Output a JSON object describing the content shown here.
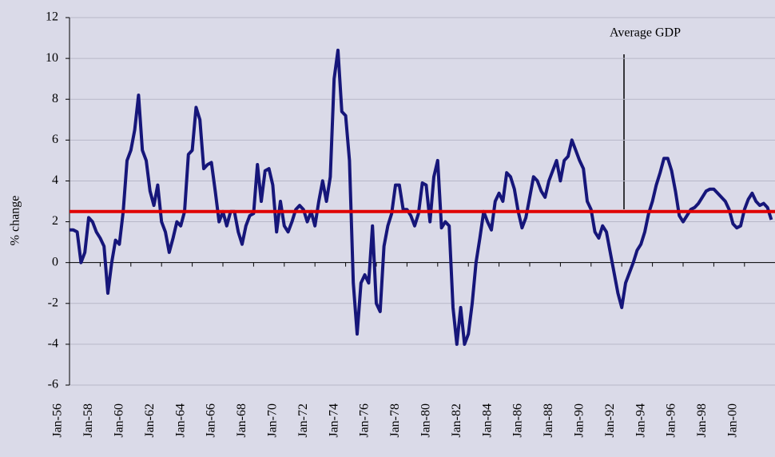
{
  "chart_data": {
    "type": "line",
    "y_label": "% change",
    "annotation": "Average GDP",
    "average": 2.5,
    "average_color": "#e00000",
    "color": "#16167a",
    "categories": [
      "Jan-56",
      null,
      null,
      null,
      null,
      null,
      null,
      null,
      "Jan-58",
      null,
      null,
      null,
      null,
      null,
      null,
      null,
      "Jan-60",
      null,
      null,
      null,
      null,
      null,
      null,
      null,
      "Jan-62",
      null,
      null,
      null,
      null,
      null,
      null,
      null,
      "Jan-64",
      null,
      null,
      null,
      null,
      null,
      null,
      null,
      "Jan-66",
      null,
      null,
      null,
      null,
      null,
      null,
      null,
      "Jan-68",
      null,
      null,
      null,
      null,
      null,
      null,
      null,
      "Jan-70",
      null,
      null,
      null,
      null,
      null,
      null,
      null,
      "Jan-72",
      null,
      null,
      null,
      null,
      null,
      null,
      null,
      "Jan-74",
      null,
      null,
      null,
      null,
      null,
      null,
      null,
      "Jan-76",
      null,
      null,
      null,
      null,
      null,
      null,
      null,
      "Jan-78",
      null,
      null,
      null,
      null,
      null,
      null,
      null,
      "Jan-80",
      null,
      null,
      null,
      null,
      null,
      null,
      null,
      "Jan-82",
      null,
      null,
      null,
      null,
      null,
      null,
      null,
      "Jan-84",
      null,
      null,
      null,
      null,
      null,
      null,
      null,
      "Jan-86",
      null,
      null,
      null,
      null,
      null,
      null,
      null,
      "Jan-88",
      null,
      null,
      null,
      null,
      null,
      null,
      null,
      "Jan-90",
      null,
      null,
      null,
      null,
      null,
      null,
      null,
      "Jan-92",
      null,
      null,
      null,
      null,
      null,
      null,
      null,
      "Jan-94",
      null,
      null,
      null,
      null,
      null,
      null,
      null,
      "Jan-96",
      null,
      null,
      null,
      null,
      null,
      null,
      null,
      "Jan-98",
      null,
      null,
      null,
      null,
      null,
      null,
      null,
      "Jan-00",
      null,
      null,
      null,
      null,
      null,
      null,
      null
    ],
    "values": [
      1.6,
      1.6,
      1.5,
      0,
      0.5,
      2.2,
      2.0,
      1.5,
      1.2,
      0.8,
      -1.5,
      0,
      1.1,
      0.9,
      2.5,
      5.0,
      5.5,
      6.5,
      8.2,
      5.5,
      5.0,
      3.5,
      2.8,
      3.8,
      2.0,
      1.5,
      0.5,
      1.2,
      2.0,
      1.8,
      2.5,
      5.3,
      5.5,
      7.6,
      7.0,
      4.6,
      4.8,
      4.9,
      3.5,
      2.0,
      2.5,
      1.8,
      2.5,
      2.5,
      1.5,
      0.9,
      1.8,
      2.3,
      2.4,
      4.8,
      3.0,
      4.5,
      4.6,
      3.8,
      1.5,
      3.0,
      1.8,
      1.5,
      2.0,
      2.6,
      2.8,
      2.6,
      2.0,
      2.5,
      1.8,
      3.0,
      4.0,
      3.0,
      4.2,
      9.0,
      10.4,
      7.4,
      7.2,
      5.0,
      -1.0,
      -3.5,
      -1.0,
      -0.6,
      -1.0,
      1.8,
      -2.0,
      -2.4,
      0.8,
      1.8,
      2.4,
      3.8,
      3.8,
      2.6,
      2.6,
      2.3,
      1.8,
      2.4,
      3.9,
      3.8,
      2.0,
      4.2,
      5.0,
      1.7,
      2.0,
      1.8,
      -2.2,
      -4.0,
      -2.2,
      -4.0,
      -3.5,
      -2.0,
      0,
      1.2,
      2.5,
      2.0,
      1.6,
      3.0,
      3.4,
      3.0,
      4.4,
      4.2,
      3.6,
      2.5,
      1.7,
      2.2,
      3.2,
      4.2,
      4.0,
      3.5,
      3.2,
      4.0,
      4.5,
      5.0,
      4.0,
      5.0,
      5.2,
      6.0,
      5.5,
      5.0,
      4.6,
      3.0,
      2.6,
      1.5,
      1.2,
      1.8,
      1.5,
      0.5,
      -0.5,
      -1.5,
      -2.2,
      -1.0,
      -0.5,
      0,
      0.6,
      0.9,
      1.5,
      2.4,
      3.0,
      3.8,
      4.4,
      5.1,
      5.1,
      4.5,
      3.5,
      2.3,
      2.0,
      2.3,
      2.6,
      2.7,
      2.9,
      3.2,
      3.5,
      3.6,
      3.6,
      3.4,
      3.2,
      3.0,
      2.6,
      1.9,
      1.7,
      1.8,
      2.6,
      3.1,
      3.4,
      3.0,
      2.8,
      2.9,
      2.7,
      2.1
    ],
    "ylim": [
      -6,
      12
    ],
    "yticks": [
      -6,
      -4,
      -2,
      0,
      2,
      4,
      6,
      8,
      10,
      12
    ],
    "grid": true
  }
}
